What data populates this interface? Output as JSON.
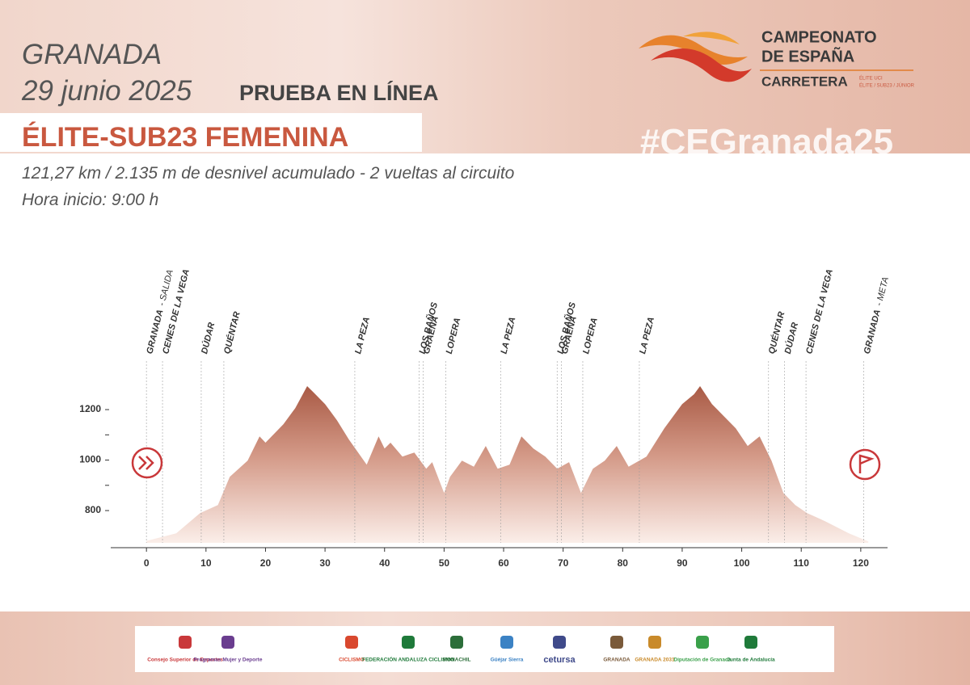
{
  "header": {
    "city": "GRANADA",
    "date": "29 junio 2025",
    "race": "PRUEBA EN LÍNEA",
    "category": "ÉLITE-SUB23 FEMENINA",
    "distance": "121,27 km / 2.135 m de desnivel acumulado  - 2 vueltas al circuito",
    "start_time": "Hora inicio: 9:00 h",
    "hashtag": "#CEGranada25"
  },
  "logo": {
    "line1": "CAMPEONATO",
    "line2": "DE ESPAÑA",
    "line3": "CARRETERA",
    "line4": "ÉLITE UCI",
    "line5": "ÉLITE / SUB23 / JÚNIOR"
  },
  "chart_data": {
    "type": "area",
    "color": "#b0634f",
    "x": [
      0,
      5,
      9,
      12,
      14,
      17,
      19,
      20,
      23,
      25,
      27,
      28,
      30,
      32,
      34,
      37,
      39,
      40,
      41,
      43,
      45,
      47,
      48,
      50,
      51,
      53,
      55,
      57,
      59,
      61,
      63,
      65,
      67,
      69,
      71,
      73,
      75,
      77,
      79,
      81,
      84,
      87,
      90,
      92,
      93,
      95,
      97,
      99,
      101,
      103,
      105,
      107,
      109,
      111,
      114,
      118,
      121.27
    ],
    "values": [
      680,
      710,
      790,
      822,
      934,
      998,
      1094,
      1069,
      1142,
      1206,
      1293,
      1270,
      1222,
      1158,
      1082,
      982,
      1094,
      1046,
      1069,
      1014,
      1030,
      966,
      992,
      870,
      934,
      998,
      974,
      1056,
      966,
      982,
      1094,
      1046,
      1014,
      966,
      992,
      870,
      966,
      998,
      1056,
      974,
      1014,
      1126,
      1222,
      1261,
      1293,
      1222,
      1174,
      1126,
      1056,
      1094,
      998,
      870,
      822,
      790,
      758,
      710,
      678
    ],
    "xlim": [
      -6,
      124.5
    ],
    "xticks": [
      0,
      10,
      20,
      30,
      40,
      50,
      60,
      70,
      80,
      90,
      100,
      110,
      120
    ],
    "ylim": [
      653,
      1405
    ],
    "yticks": [
      800,
      1000,
      1200
    ],
    "yminor_ticks": [
      900,
      1100
    ],
    "waypoints": [
      {
        "km": 0,
        "label": "GRANADA",
        "note": "- SALIDA"
      },
      {
        "km": 2.7,
        "label": "CENES DE LA VEGA"
      },
      {
        "km": 9.2,
        "label": "DÚDAR"
      },
      {
        "km": 13,
        "label": "QUÉNTAR"
      },
      {
        "km": 35,
        "label": "LA PEZA"
      },
      {
        "km": 45.8,
        "label": "LOS BAÑOS"
      },
      {
        "km": 46.5,
        "label": "GRAENA"
      },
      {
        "km": 50.3,
        "label": "LOPERA"
      },
      {
        "km": 59.5,
        "label": "LA PEZA"
      },
      {
        "km": 69,
        "label": "LOS BAÑOS"
      },
      {
        "km": 69.7,
        "label": "GRAENA"
      },
      {
        "km": 73.3,
        "label": "LOPERA"
      },
      {
        "km": 82.8,
        "label": "LA PEZA"
      },
      {
        "km": 104.5,
        "label": "QUÉNTAR"
      },
      {
        "km": 107.2,
        "label": "DÚDAR"
      },
      {
        "km": 110.8,
        "label": "CENES DE LA VEGA"
      },
      {
        "km": 120.5,
        "label": "GRANADA",
        "note": "- META"
      }
    ]
  },
  "sponsors": [
    "Consejo Superior de Deportes",
    "Programas Mujer y Deporte",
    "CICLISMO",
    "FEDERACIÓN ANDALUZA CICLISMO",
    "MONACHIL",
    "Güéjar Sierra",
    "cetursa",
    "GRANADA",
    "GRANADA 2031",
    "Diputación de Granada",
    "Junta de Andalucía"
  ]
}
